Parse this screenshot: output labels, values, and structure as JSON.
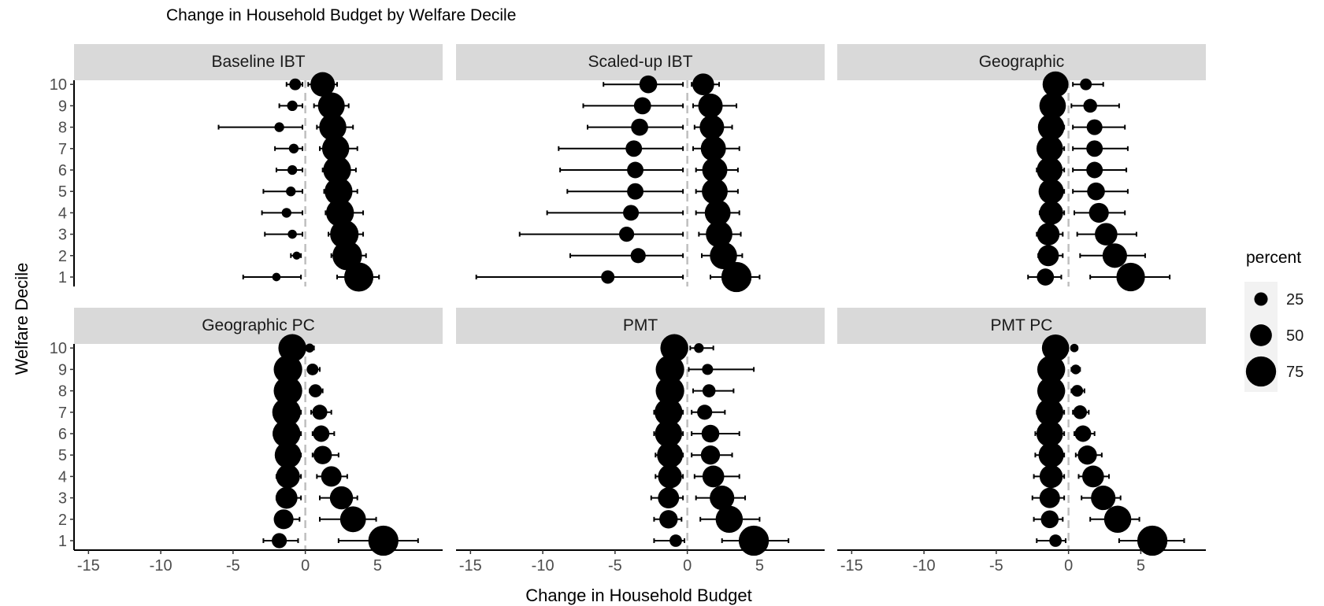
{
  "chart_data": {
    "type": "scatter",
    "title": "Change in Household Budget by Welfare Decile",
    "xlabel": "Change in Household Budget",
    "ylabel": "Welfare Decile",
    "xlim": [
      -16,
      9.5
    ],
    "x_ticks": [
      -15,
      -10,
      -5,
      0,
      5
    ],
    "y_ticks": [
      1,
      2,
      3,
      4,
      5,
      6,
      7,
      8,
      9,
      10
    ],
    "reference_line_x": 0,
    "colors": {
      "points": "#000000",
      "reference_line": "#bfbfbf",
      "strip": "#d9d9d9",
      "legend_bg": "#f2f2f2"
    },
    "legend": {
      "title": "percent",
      "sizes": [
        25,
        50,
        75
      ],
      "placement": "right"
    },
    "panels": [
      {
        "name": "Baseline IBT",
        "losers": [
          {
            "decile": 10,
            "x": -0.7,
            "lo": -1.3,
            "hi": -0.2,
            "percent": 20
          },
          {
            "decile": 9,
            "x": -0.9,
            "lo": -1.8,
            "hi": -0.2,
            "percent": 16
          },
          {
            "decile": 8,
            "x": -1.8,
            "lo": -6.0,
            "hi": -0.2,
            "percent": 14
          },
          {
            "decile": 7,
            "x": -0.8,
            "lo": -2.1,
            "hi": -0.2,
            "percent": 14
          },
          {
            "decile": 6,
            "x": -0.9,
            "lo": -2.0,
            "hi": -0.2,
            "percent": 14
          },
          {
            "decile": 5,
            "x": -1.0,
            "lo": -2.9,
            "hi": -0.2,
            "percent": 14
          },
          {
            "decile": 4,
            "x": -1.3,
            "lo": -3.0,
            "hi": -0.2,
            "percent": 14
          },
          {
            "decile": 3,
            "x": -0.9,
            "lo": -2.8,
            "hi": -0.2,
            "percent": 12
          },
          {
            "decile": 2,
            "x": -0.6,
            "lo": -1.0,
            "hi": -0.3,
            "percent": 9
          },
          {
            "decile": 1,
            "x": -2.0,
            "lo": -4.3,
            "hi": -0.3,
            "percent": 10
          }
        ],
        "gainers": [
          {
            "decile": 10,
            "x": 1.2,
            "lo": 0.2,
            "hi": 2.2,
            "percent": 58
          },
          {
            "decile": 9,
            "x": 1.8,
            "lo": 0.6,
            "hi": 3.0,
            "percent": 65
          },
          {
            "decile": 8,
            "x": 1.9,
            "lo": 0.8,
            "hi": 3.3,
            "percent": 66
          },
          {
            "decile": 7,
            "x": 2.1,
            "lo": 1.0,
            "hi": 3.6,
            "percent": 66
          },
          {
            "decile": 6,
            "x": 2.2,
            "lo": 1.2,
            "hi": 3.5,
            "percent": 68
          },
          {
            "decile": 5,
            "x": 2.3,
            "lo": 1.3,
            "hi": 3.6,
            "percent": 68
          },
          {
            "decile": 4,
            "x": 2.4,
            "lo": 1.4,
            "hi": 4.0,
            "percent": 68
          },
          {
            "decile": 3,
            "x": 2.7,
            "lo": 1.6,
            "hi": 4.0,
            "percent": 70
          },
          {
            "decile": 2,
            "x": 2.9,
            "lo": 1.8,
            "hi": 4.2,
            "percent": 73
          },
          {
            "decile": 1,
            "x": 3.7,
            "lo": 2.2,
            "hi": 5.1,
            "percent": 72
          }
        ]
      },
      {
        "name": "Scaled-up IBT",
        "losers": [
          {
            "decile": 10,
            "x": -2.7,
            "lo": -5.8,
            "hi": -0.3,
            "percent": 38
          },
          {
            "decile": 9,
            "x": -3.1,
            "lo": -7.2,
            "hi": -0.3,
            "percent": 36
          },
          {
            "decile": 8,
            "x": -3.3,
            "lo": -6.9,
            "hi": -0.3,
            "percent": 36
          },
          {
            "decile": 7,
            "x": -3.7,
            "lo": -8.9,
            "hi": -0.3,
            "percent": 34
          },
          {
            "decile": 6,
            "x": -3.6,
            "lo": -8.8,
            "hi": -0.3,
            "percent": 34
          },
          {
            "decile": 5,
            "x": -3.6,
            "lo": -8.3,
            "hi": -0.3,
            "percent": 34
          },
          {
            "decile": 4,
            "x": -3.9,
            "lo": -9.7,
            "hi": -0.3,
            "percent": 32
          },
          {
            "decile": 3,
            "x": -4.2,
            "lo": -11.6,
            "hi": -0.3,
            "percent": 30
          },
          {
            "decile": 2,
            "x": -3.4,
            "lo": -8.1,
            "hi": -0.3,
            "percent": 30
          },
          {
            "decile": 1,
            "x": -5.5,
            "lo": -14.6,
            "hi": -0.3,
            "percent": 25
          }
        ],
        "gainers": [
          {
            "decile": 10,
            "x": 1.1,
            "lo": 0.3,
            "hi": 2.2,
            "percent": 50
          },
          {
            "decile": 9,
            "x": 1.6,
            "lo": 0.4,
            "hi": 3.4,
            "percent": 58
          },
          {
            "decile": 8,
            "x": 1.7,
            "lo": 0.5,
            "hi": 3.1,
            "percent": 58
          },
          {
            "decile": 7,
            "x": 1.8,
            "lo": 0.4,
            "hi": 3.6,
            "percent": 60
          },
          {
            "decile": 6,
            "x": 1.9,
            "lo": 0.6,
            "hi": 3.5,
            "percent": 60
          },
          {
            "decile": 5,
            "x": 1.9,
            "lo": 0.6,
            "hi": 3.5,
            "percent": 62
          },
          {
            "decile": 4,
            "x": 2.1,
            "lo": 0.6,
            "hi": 3.6,
            "percent": 62
          },
          {
            "decile": 3,
            "x": 2.2,
            "lo": 0.8,
            "hi": 3.7,
            "percent": 64
          },
          {
            "decile": 2,
            "x": 2.5,
            "lo": 1.0,
            "hi": 3.8,
            "percent": 66
          },
          {
            "decile": 1,
            "x": 3.4,
            "lo": 1.6,
            "hi": 5.0,
            "percent": 75
          }
        ]
      },
      {
        "name": "Geographic",
        "losers": [
          {
            "decile": 10,
            "x": -0.9,
            "lo": -1.7,
            "hi": -0.2,
            "percent": 62
          },
          {
            "decile": 9,
            "x": -1.1,
            "lo": -1.9,
            "hi": -0.3,
            "percent": 64
          },
          {
            "decile": 8,
            "x": -1.2,
            "lo": -2.0,
            "hi": -0.3,
            "percent": 64
          },
          {
            "decile": 7,
            "x": -1.3,
            "lo": -2.1,
            "hi": -0.3,
            "percent": 64
          },
          {
            "decile": 6,
            "x": -1.3,
            "lo": -2.2,
            "hi": -0.3,
            "percent": 62
          },
          {
            "decile": 5,
            "x": -1.2,
            "lo": -2.0,
            "hi": -0.3,
            "percent": 60
          },
          {
            "decile": 4,
            "x": -1.2,
            "lo": -2.0,
            "hi": -0.3,
            "percent": 56
          },
          {
            "decile": 3,
            "x": -1.4,
            "lo": -2.2,
            "hi": -0.4,
            "percent": 52
          },
          {
            "decile": 2,
            "x": -1.4,
            "lo": -2.1,
            "hi": -0.4,
            "percent": 48
          },
          {
            "decile": 1,
            "x": -1.6,
            "lo": -2.8,
            "hi": -0.5,
            "percent": 36
          }
        ],
        "gainers": [
          {
            "decile": 10,
            "x": 1.2,
            "lo": 0.3,
            "hi": 2.4,
            "percent": 20
          },
          {
            "decile": 9,
            "x": 1.5,
            "lo": 0.2,
            "hi": 3.5,
            "percent": 26
          },
          {
            "decile": 8,
            "x": 1.8,
            "lo": 0.3,
            "hi": 3.9,
            "percent": 32
          },
          {
            "decile": 7,
            "x": 1.8,
            "lo": 0.3,
            "hi": 4.1,
            "percent": 34
          },
          {
            "decile": 6,
            "x": 1.8,
            "lo": 0.3,
            "hi": 4.0,
            "percent": 34
          },
          {
            "decile": 5,
            "x": 1.9,
            "lo": 0.3,
            "hi": 4.1,
            "percent": 38
          },
          {
            "decile": 4,
            "x": 2.1,
            "lo": 0.4,
            "hi": 3.9,
            "percent": 44
          },
          {
            "decile": 3,
            "x": 2.6,
            "lo": 0.6,
            "hi": 4.7,
            "percent": 52
          },
          {
            "decile": 2,
            "x": 3.2,
            "lo": 0.8,
            "hi": 5.3,
            "percent": 58
          },
          {
            "decile": 1,
            "x": 4.3,
            "lo": 1.5,
            "hi": 7.0,
            "percent": 70
          }
        ]
      },
      {
        "name": "Geographic PC",
        "losers": [
          {
            "decile": 10,
            "x": -0.9,
            "lo": -1.7,
            "hi": -0.2,
            "percent": 68
          },
          {
            "decile": 9,
            "x": -1.2,
            "lo": -2.0,
            "hi": -0.3,
            "percent": 70
          },
          {
            "decile": 8,
            "x": -1.2,
            "lo": -2.0,
            "hi": -0.3,
            "percent": 70
          },
          {
            "decile": 7,
            "x": -1.3,
            "lo": -2.0,
            "hi": -0.3,
            "percent": 70
          },
          {
            "decile": 6,
            "x": -1.3,
            "lo": -2.2,
            "hi": -0.3,
            "percent": 68
          },
          {
            "decile": 5,
            "x": -1.2,
            "lo": -2.0,
            "hi": -0.3,
            "percent": 64
          },
          {
            "decile": 4,
            "x": -1.2,
            "lo": -2.0,
            "hi": -0.3,
            "percent": 56
          },
          {
            "decile": 3,
            "x": -1.3,
            "lo": -2.0,
            "hi": -0.3,
            "percent": 50
          },
          {
            "decile": 2,
            "x": -1.5,
            "lo": -2.1,
            "hi": -0.4,
            "percent": 44
          },
          {
            "decile": 1,
            "x": -1.8,
            "lo": -2.9,
            "hi": -0.5,
            "percent": 30
          }
        ],
        "gainers": [
          {
            "decile": 10,
            "x": 0.3,
            "lo": 0.1,
            "hi": 0.6,
            "percent": 12
          },
          {
            "decile": 9,
            "x": 0.5,
            "lo": 0.2,
            "hi": 1.0,
            "percent": 20
          },
          {
            "decile": 8,
            "x": 0.7,
            "lo": 0.3,
            "hi": 1.2,
            "percent": 24
          },
          {
            "decile": 7,
            "x": 1.0,
            "lo": 0.4,
            "hi": 1.8,
            "percent": 30
          },
          {
            "decile": 6,
            "x": 1.1,
            "lo": 0.5,
            "hi": 2.0,
            "percent": 34
          },
          {
            "decile": 5,
            "x": 1.2,
            "lo": 0.5,
            "hi": 2.3,
            "percent": 40
          },
          {
            "decile": 4,
            "x": 1.8,
            "lo": 0.8,
            "hi": 2.9,
            "percent": 46
          },
          {
            "decile": 3,
            "x": 2.5,
            "lo": 1.0,
            "hi": 3.6,
            "percent": 54
          },
          {
            "decile": 2,
            "x": 3.3,
            "lo": 1.0,
            "hi": 4.9,
            "percent": 62
          },
          {
            "decile": 1,
            "x": 5.4,
            "lo": 2.3,
            "hi": 7.8,
            "percent": 75
          }
        ]
      },
      {
        "name": "PMT",
        "losers": [
          {
            "decile": 10,
            "x": -0.9,
            "lo": -1.7,
            "hi": -0.2,
            "percent": 68
          },
          {
            "decile": 9,
            "x": -1.2,
            "lo": -2.1,
            "hi": -0.3,
            "percent": 70
          },
          {
            "decile": 8,
            "x": -1.2,
            "lo": -2.1,
            "hi": -0.3,
            "percent": 70
          },
          {
            "decile": 7,
            "x": -1.3,
            "lo": -2.3,
            "hi": -0.3,
            "percent": 68
          },
          {
            "decile": 6,
            "x": -1.3,
            "lo": -2.3,
            "hi": -0.3,
            "percent": 66
          },
          {
            "decile": 5,
            "x": -1.2,
            "lo": -2.2,
            "hi": -0.3,
            "percent": 62
          },
          {
            "decile": 4,
            "x": -1.2,
            "lo": -2.2,
            "hi": -0.3,
            "percent": 56
          },
          {
            "decile": 3,
            "x": -1.3,
            "lo": -2.5,
            "hi": -0.3,
            "percent": 48
          },
          {
            "decile": 2,
            "x": -1.3,
            "lo": -2.3,
            "hi": -0.4,
            "percent": 40
          },
          {
            "decile": 1,
            "x": -0.8,
            "lo": -2.3,
            "hi": -0.2,
            "percent": 22
          }
        ],
        "gainers": [
          {
            "decile": 10,
            "x": 0.8,
            "lo": 0.2,
            "hi": 1.8,
            "percent": 14
          },
          {
            "decile": 9,
            "x": 1.4,
            "lo": 0.1,
            "hi": 4.6,
            "percent": 18
          },
          {
            "decile": 8,
            "x": 1.5,
            "lo": 0.4,
            "hi": 3.2,
            "percent": 24
          },
          {
            "decile": 7,
            "x": 1.2,
            "lo": 0.3,
            "hi": 2.6,
            "percent": 30
          },
          {
            "decile": 6,
            "x": 1.6,
            "lo": 0.3,
            "hi": 3.6,
            "percent": 38
          },
          {
            "decile": 5,
            "x": 1.6,
            "lo": 0.3,
            "hi": 3.1,
            "percent": 42
          },
          {
            "decile": 4,
            "x": 1.8,
            "lo": 0.5,
            "hi": 3.6,
            "percent": 50
          },
          {
            "decile": 3,
            "x": 2.4,
            "lo": 0.6,
            "hi": 4.0,
            "percent": 58
          },
          {
            "decile": 2,
            "x": 2.9,
            "lo": 0.9,
            "hi": 5.0,
            "percent": 66
          },
          {
            "decile": 1,
            "x": 4.6,
            "lo": 2.4,
            "hi": 7.0,
            "percent": 75
          }
        ]
      },
      {
        "name": "PMT PC",
        "losers": [
          {
            "decile": 10,
            "x": -0.9,
            "lo": -1.7,
            "hi": -0.2,
            "percent": 66
          },
          {
            "decile": 9,
            "x": -1.2,
            "lo": -2.0,
            "hi": -0.3,
            "percent": 68
          },
          {
            "decile": 8,
            "x": -1.2,
            "lo": -2.0,
            "hi": -0.3,
            "percent": 68
          },
          {
            "decile": 7,
            "x": -1.3,
            "lo": -2.2,
            "hi": -0.3,
            "percent": 66
          },
          {
            "decile": 6,
            "x": -1.3,
            "lo": -2.3,
            "hi": -0.3,
            "percent": 64
          },
          {
            "decile": 5,
            "x": -1.2,
            "lo": -2.3,
            "hi": -0.3,
            "percent": 60
          },
          {
            "decile": 4,
            "x": -1.2,
            "lo": -2.4,
            "hi": -0.3,
            "percent": 54
          },
          {
            "decile": 3,
            "x": -1.3,
            "lo": -2.5,
            "hi": -0.3,
            "percent": 46
          },
          {
            "decile": 2,
            "x": -1.3,
            "lo": -2.4,
            "hi": -0.4,
            "percent": 38
          },
          {
            "decile": 1,
            "x": -0.9,
            "lo": -2.2,
            "hi": -0.2,
            "percent": 22
          }
        ],
        "gainers": [
          {
            "decile": 10,
            "x": 0.4,
            "lo": 0.2,
            "hi": 0.6,
            "percent": 10
          },
          {
            "decile": 9,
            "x": 0.5,
            "lo": 0.2,
            "hi": 0.8,
            "percent": 14
          },
          {
            "decile": 8,
            "x": 0.6,
            "lo": 0.2,
            "hi": 1.1,
            "percent": 20
          },
          {
            "decile": 7,
            "x": 0.8,
            "lo": 0.3,
            "hi": 1.4,
            "percent": 26
          },
          {
            "decile": 6,
            "x": 1.0,
            "lo": 0.4,
            "hi": 1.8,
            "percent": 34
          },
          {
            "decile": 5,
            "x": 1.3,
            "lo": 0.5,
            "hi": 2.3,
            "percent": 42
          },
          {
            "decile": 4,
            "x": 1.7,
            "lo": 0.7,
            "hi": 2.8,
            "percent": 50
          },
          {
            "decile": 3,
            "x": 2.4,
            "lo": 0.9,
            "hi": 3.6,
            "percent": 58
          },
          {
            "decile": 2,
            "x": 3.4,
            "lo": 1.5,
            "hi": 4.9,
            "percent": 66
          },
          {
            "decile": 1,
            "x": 5.8,
            "lo": 3.5,
            "hi": 8.0,
            "percent": 75
          }
        ]
      }
    ]
  }
}
